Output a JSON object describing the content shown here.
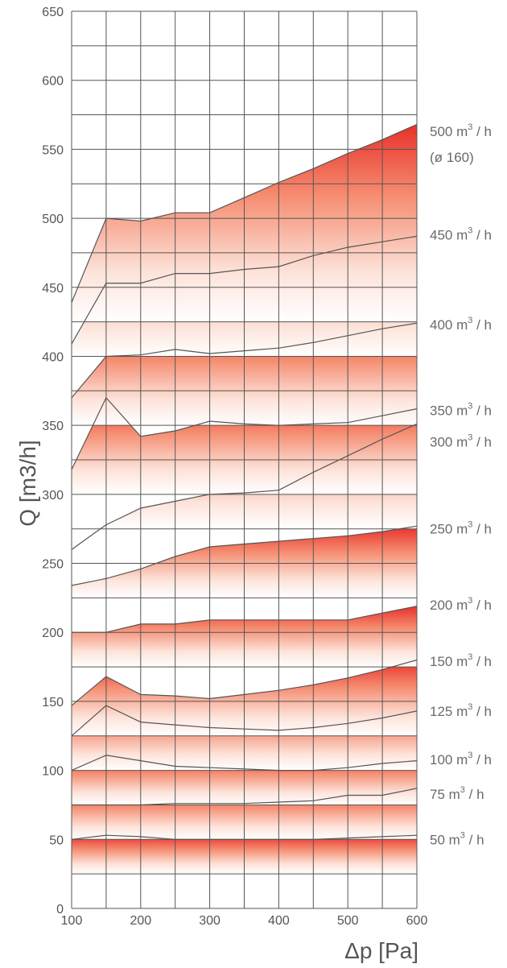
{
  "chart_data": {
    "type": "area",
    "xlabel": "Δp [Pa]",
    "ylabel": "Q [m3/h]",
    "xlim": [
      100,
      600
    ],
    "ylim": [
      0,
      650
    ],
    "x_ticks": [
      100,
      200,
      300,
      400,
      500,
      600
    ],
    "y_ticks": [
      0,
      50,
      100,
      150,
      200,
      250,
      300,
      350,
      400,
      450,
      500,
      550,
      600,
      650
    ],
    "grid": true,
    "x": [
      100,
      150,
      200,
      250,
      300,
      350,
      400,
      450,
      500,
      550,
      600
    ],
    "bands": [
      {
        "name": "50 m3 / h",
        "label_main": "50 m",
        "label_sup": "3",
        "label_tail": " / h",
        "label_extra": "",
        "label_y": 50,
        "bottom": 25,
        "values": [
          50,
          53,
          52,
          50,
          50,
          50,
          50,
          50,
          51,
          52,
          53
        ]
      },
      {
        "name": "75 m3 / h",
        "label_main": "75 m",
        "label_sup": "3",
        "label_tail": " / h",
        "label_extra": "",
        "label_y": 83,
        "bottom": 50,
        "values": [
          75,
          75,
          75,
          76,
          76,
          76,
          77,
          78,
          82,
          82,
          87
        ]
      },
      {
        "name": "100 m3 / h",
        "label_main": "100 m",
        "label_sup": "3",
        "label_tail": " / h",
        "label_extra": "",
        "label_y": 108,
        "bottom": 75,
        "values": [
          100,
          111,
          107,
          103,
          102,
          101,
          100,
          100,
          102,
          105,
          107
        ]
      },
      {
        "name": "125 m3 / h",
        "label_main": "125 m",
        "label_sup": "3",
        "label_tail": " / h",
        "label_extra": "",
        "label_y": 143,
        "bottom": 100,
        "values": [
          125,
          147,
          135,
          133,
          131,
          130,
          129,
          131,
          134,
          138,
          143
        ]
      },
      {
        "name": "150 m3 / h",
        "label_main": "150 m",
        "label_sup": "3",
        "label_tail": " / h",
        "label_extra": "",
        "label_y": 179,
        "bottom": 125,
        "values": [
          147,
          168,
          155,
          154,
          152,
          155,
          158,
          162,
          167,
          173,
          180
        ]
      },
      {
        "name": "200 m3 / h",
        "label_main": "200 m",
        "label_sup": "3",
        "label_tail": " / h",
        "label_extra": "",
        "label_y": 220,
        "bottom": 175,
        "values": [
          200,
          200,
          206,
          206,
          209,
          209,
          209,
          209,
          209,
          214,
          219
        ]
      },
      {
        "name": "250 m3 / h",
        "label_main": "250 m",
        "label_sup": "3",
        "label_tail": " / h",
        "label_extra": "",
        "label_y": 275,
        "bottom": 225,
        "values": [
          234,
          239,
          246,
          255,
          262,
          264,
          266,
          268,
          270,
          273,
          277
        ]
      },
      {
        "name": "300 m3 / h",
        "label_main": "300 m",
        "label_sup": "3",
        "label_tail": " / h",
        "label_extra": "",
        "label_y": 338,
        "bottom": 275,
        "values": [
          260,
          278,
          290,
          295,
          300,
          301,
          303,
          316,
          328,
          340,
          351
        ]
      },
      {
        "name": "350 m3 / h",
        "label_main": "350 m",
        "label_sup": "3",
        "label_tail": " / h",
        "label_extra": "",
        "label_y": 361,
        "bottom": 300,
        "values": [
          318,
          370,
          342,
          346,
          353,
          351,
          350,
          351,
          352,
          357,
          362
        ]
      },
      {
        "name": "400 m3 / h",
        "label_main": "400 m",
        "label_sup": "3",
        "label_tail": " / h",
        "label_extra": "",
        "label_y": 423,
        "bottom": 350,
        "values": [
          370,
          400,
          401,
          405,
          402,
          404,
          406,
          410,
          415,
          420,
          424
        ]
      },
      {
        "name": "450 m3 / h",
        "label_main": "450 m",
        "label_sup": "3",
        "label_tail": " / h",
        "label_extra": "",
        "label_y": 488,
        "bottom": 400,
        "values": [
          409,
          453,
          453,
          460,
          460,
          463,
          465,
          473,
          479,
          483,
          487
        ]
      },
      {
        "name": "500 m3 / h",
        "label_main": "500 m",
        "label_sup": "3",
        "label_tail": " / h",
        "label_extra": "(ø 160)",
        "label_y": 563,
        "bottom": 425,
        "values": [
          439,
          500,
          498,
          504,
          504,
          515,
          526,
          536,
          547,
          557,
          568
        ]
      }
    ]
  }
}
